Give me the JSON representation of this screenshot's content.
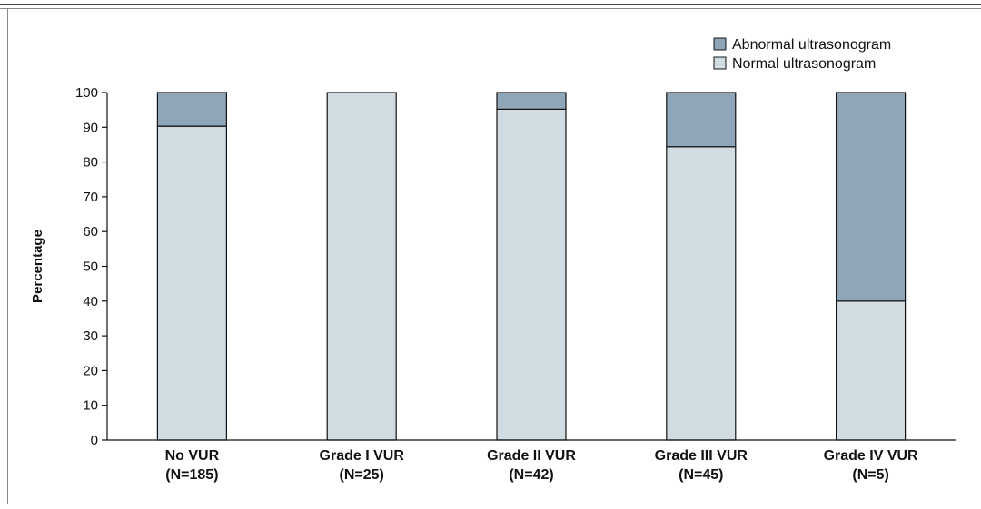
{
  "chart_data": {
    "type": "bar",
    "stacked": true,
    "ylabel": "Percentage",
    "ylim": [
      0,
      100
    ],
    "yticks": [
      "0",
      "10",
      "20",
      "30",
      "40",
      "50",
      "60",
      "70",
      "80",
      "90",
      "100"
    ],
    "categories": [
      [
        "No VUR",
        "(N=185)"
      ],
      [
        "Grade I VUR",
        "(N=25)"
      ],
      [
        "Grade II VUR",
        "(N=42)"
      ],
      [
        "Grade III VUR",
        "(N=45)"
      ],
      [
        "Grade IV VUR",
        "(N=5)"
      ]
    ],
    "series": [
      {
        "name": "Normal ultrasonogram",
        "color": "#d0dce2",
        "values": [
          90.3,
          100,
          95.2,
          84.4,
          40
        ]
      },
      {
        "name": "Abnormal ultrasonogram",
        "color": "#8fa6b8",
        "values": [
          9.7,
          0,
          4.8,
          15.6,
          60
        ]
      }
    ],
    "legend": {
      "position": "top-right",
      "order": [
        "Abnormal ultrasonogram",
        "Normal ultrasonogram"
      ]
    },
    "grid": false
  }
}
